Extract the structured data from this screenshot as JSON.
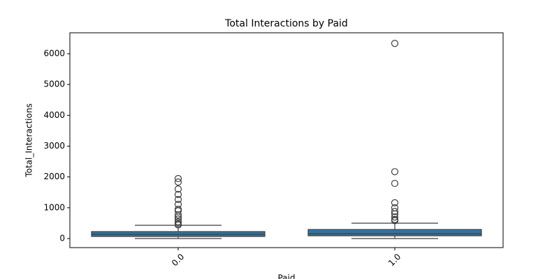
{
  "chart_data": {
    "type": "box",
    "title": "Total Interactions by Paid",
    "x_label": "Paid",
    "y_label": "Total_Interactions",
    "categories": [
      "0.0",
      "1.0"
    ],
    "color": "#3274a1",
    "boxes": [
      {
        "min": 0,
        "q1": 68,
        "median": 136,
        "q3": 226,
        "max": 430,
        "outliers": [
          1947,
          1834,
          1607,
          1430,
          1268,
          1110,
          951,
          900,
          770,
          700,
          634,
          543,
          475,
          440
        ]
      },
      {
        "min": 0,
        "q1": 90,
        "median": 158,
        "q3": 294,
        "max": 498,
        "outliers": [
          6334,
          2170,
          1790,
          1160,
          1000,
          880,
          800,
          700,
          620,
          580
        ]
      }
    ],
    "ylim": [
      -294,
      6679
    ],
    "yticks": [
      0,
      1000,
      2000,
      3000,
      4000,
      5000,
      6000
    ]
  }
}
